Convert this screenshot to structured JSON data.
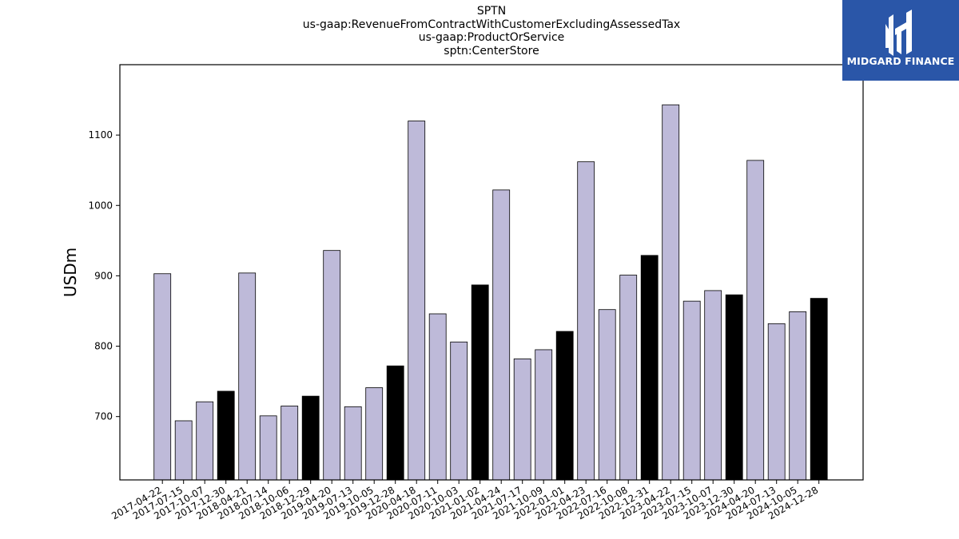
{
  "chart_data": {
    "type": "bar",
    "title_lines": [
      "SPTN",
      "us-gaap:RevenueFromContractWithCustomerExcludingAssessedTax",
      "us-gaap:ProductOrService",
      "sptn:CenterStore"
    ],
    "ylabel": "USDm",
    "xlabel": "",
    "ylim": [
      610,
      1200
    ],
    "yticks": [
      700,
      800,
      900,
      1000,
      1100
    ],
    "categories": [
      "2017-04-22",
      "2017-07-15",
      "2017-10-07",
      "2017-12-30",
      "2018-04-21",
      "2018-07-14",
      "2018-10-06",
      "2018-12-29",
      "2019-04-20",
      "2019-07-13",
      "2019-10-05",
      "2019-12-28",
      "2020-04-18",
      "2020-07-11",
      "2020-10-03",
      "2021-01-02",
      "2021-04-24",
      "2021-07-17",
      "2021-10-09",
      "2022-01-01",
      "2022-04-23",
      "2022-07-16",
      "2022-10-08",
      "2022-12-31",
      "2023-04-22",
      "2023-07-15",
      "2023-10-07",
      "2023-12-30",
      "2024-04-20",
      "2024-07-13",
      "2024-10-05",
      "2024-12-28"
    ],
    "values": [
      903,
      694,
      721,
      736,
      904,
      701,
      715,
      729,
      936,
      714,
      741,
      772,
      1120,
      846,
      806,
      887,
      1022,
      782,
      795,
      821,
      1062,
      852,
      901,
      929,
      1143,
      864,
      879,
      873,
      1064,
      832,
      849,
      868
    ],
    "highlight": [
      false,
      false,
      false,
      true,
      false,
      false,
      false,
      true,
      false,
      false,
      false,
      true,
      false,
      false,
      false,
      true,
      false,
      false,
      false,
      true,
      false,
      false,
      false,
      true,
      false,
      false,
      false,
      true,
      false,
      false,
      false,
      true
    ],
    "colors": {
      "regular": "#bebad9",
      "highlight": "#000000",
      "edge": "#000000"
    },
    "grid": false,
    "legend": "none"
  },
  "logo": {
    "text": "MIDGARD FINANCE",
    "background": "#2a56a8"
  }
}
